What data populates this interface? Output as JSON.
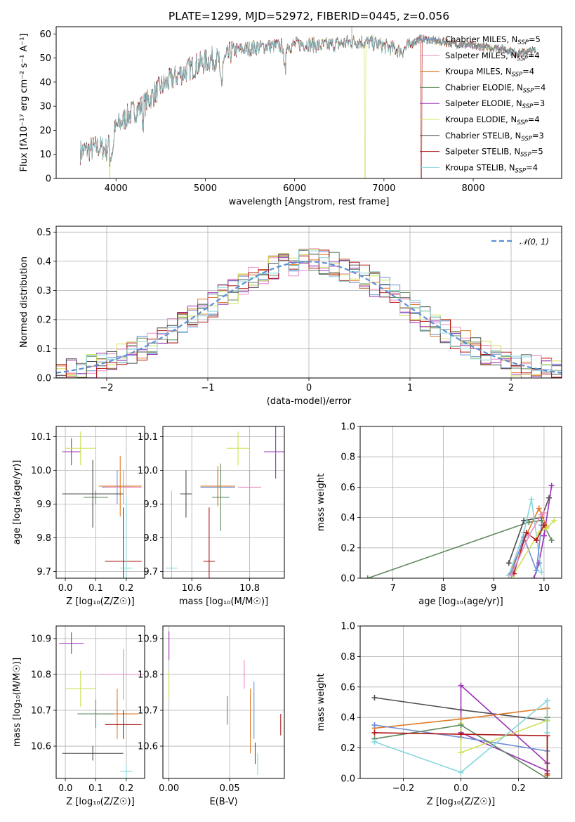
{
  "colors": {
    "Chabrier MILES": "#6b8fd6",
    "Salpeter MILES": "#e88bc2",
    "Kroupa MILES": "#e07c2a",
    "Chabrier ELODIE": "#5f8a5f",
    "Salpeter ELODIE": "#9b30b6",
    "Kroupa ELODIE": "#cfe05a",
    "Chabrier STELIB": "#4d4d4d",
    "Salpeter STELIB": "#b01616",
    "Kroupa STELIB": "#86d6dc",
    "normal": "#5b8fd6"
  },
  "chart_data": [
    {
      "id": "spectrum",
      "type": "line",
      "title": "PLATE=1299, MJD=52972, FIBERID=0445, z=0.056",
      "xlabel": "wavelength [Angstrom, rest frame]",
      "ylabel": "Flux [fλ10⁻¹⁷ erg cm⁻² s⁻¹ A⁻¹]",
      "xlim": [
        3330,
        8990
      ],
      "ylim": [
        0,
        63
      ],
      "xticks": [
        "4000",
        "5000",
        "6000",
        "7000",
        "8000"
      ],
      "yticks": [
        "0",
        "10",
        "20",
        "30",
        "40",
        "50",
        "60"
      ],
      "grid": false,
      "legend_position": "right",
      "series": [
        {
          "name": "Chabrier MILES, N",
          "sub": "SSP",
          "suffix": "=5"
        },
        {
          "name": "Salpeter MILES, N",
          "sub": "SSP",
          "suffix": "=4"
        },
        {
          "name": "Kroupa MILES, N",
          "sub": "SSP",
          "suffix": "=4"
        },
        {
          "name": "Chabrier ELODIE, N",
          "sub": "SSP",
          "suffix": "=4"
        },
        {
          "name": "Salpeter ELODIE, N",
          "sub": "SSP",
          "suffix": "=3"
        },
        {
          "name": "Kroupa ELODIE, N",
          "sub": "SSP",
          "suffix": "=4"
        },
        {
          "name": "Chabrier STELIB, N",
          "sub": "SSP",
          "suffix": "=3"
        },
        {
          "name": "Salpeter STELIB, N",
          "sub": "SSP",
          "suffix": "=5"
        },
        {
          "name": "Kroupa STELIB, N",
          "sub": "SSP",
          "suffix": "=4"
        }
      ],
      "continuum": {
        "x": [
          3600,
          3700,
          3800,
          3900,
          4000,
          4100,
          4200,
          4300,
          4400,
          4500,
          4700,
          4900,
          5100,
          5200,
          5300,
          5500,
          5700,
          5900,
          6100,
          6300,
          6500,
          6700,
          6900,
          7100,
          7200,
          7400,
          7600,
          7800,
          8000,
          8300,
          8500,
          8700
        ],
        "y": [
          11,
          12,
          13,
          12,
          21,
          25,
          28,
          30,
          34,
          38,
          43,
          47,
          50,
          48,
          53,
          54,
          55,
          55,
          56,
          55,
          56,
          57,
          56,
          54,
          53,
          58,
          57,
          56,
          55,
          54,
          52,
          53
        ]
      },
      "dropouts": [
        {
          "x": 3930,
          "series": "Kroupa ELODIE"
        },
        {
          "x": 6790,
          "series": "Kroupa ELODIE"
        },
        {
          "x": 7420,
          "series": "Salpeter STELIB"
        }
      ]
    },
    {
      "id": "residuals",
      "type": "bar",
      "xlabel": "(data-model)/error",
      "ylabel": "Normed distribution",
      "xlim": [
        -2.5,
        2.5
      ],
      "ylim": [
        0,
        0.52
      ],
      "xticks": [
        "−2",
        "−1",
        "0",
        "1",
        "2"
      ],
      "yticks": [
        "0.0",
        "0.1",
        "0.2",
        "0.3",
        "0.4",
        "0.5"
      ],
      "grid": true,
      "legend_position": "upper right",
      "legend": "𝒩(0, 1)",
      "bin_width": 0.1
    },
    {
      "id": "age-vs-Z",
      "type": "scatter",
      "xlabel": "Z [log₁₀(Z/Z☉)]",
      "ylabel": "age  [log₁₀(age/yr)]",
      "xlim": [
        -0.03,
        0.26
      ],
      "ylim": [
        9.68,
        10.13
      ],
      "xticks": [
        "0.0",
        "0.1",
        "0.2"
      ],
      "yticks": [
        "9.7",
        "9.8",
        "9.9",
        "10.0",
        "10.1"
      ],
      "grid": true,
      "points": [
        {
          "series": "Chabrier MILES",
          "x": 0.17,
          "y": 9.95,
          "xerr": 0.05,
          "yerr": 0.05
        },
        {
          "series": "Salpeter MILES",
          "x": 0.19,
          "y": 9.95,
          "xerr": 0.06,
          "yerr": 0.05
        },
        {
          "series": "Kroupa MILES",
          "x": 0.18,
          "y": 9.953,
          "xerr": 0.07,
          "yerr": 0.09
        },
        {
          "series": "Chabrier ELODIE",
          "x": 0.1,
          "y": 9.92,
          "xerr": 0.04,
          "yerr": 0.02
        },
        {
          "series": "Salpeter ELODIE",
          "x": 0.02,
          "y": 10.055,
          "xerr": 0.03,
          "yerr": 0.04
        },
        {
          "series": "Kroupa ELODIE",
          "x": 0.05,
          "y": 10.065,
          "xerr": 0.05,
          "yerr": 0.05
        },
        {
          "series": "Chabrier STELIB",
          "x": 0.09,
          "y": 9.93,
          "xerr": 0.1,
          "yerr": 0.1
        },
        {
          "series": "Salpeter STELIB",
          "x": 0.19,
          "y": 9.73,
          "xerr": 0.06,
          "yerr": 0.16
        },
        {
          "series": "Kroupa STELIB",
          "x": 0.2,
          "y": 9.71,
          "xerr": 0.02,
          "yerr": 0.21
        }
      ]
    },
    {
      "id": "age-vs-mass",
      "type": "scatter",
      "xlabel": "mass [log₁₀(M/M☉)]",
      "ylabel": "",
      "xlim": [
        10.5,
        10.92
      ],
      "ylim": [
        9.68,
        10.13
      ],
      "xticks": [
        "10.6",
        "10.8"
      ],
      "yticks": [
        "9.7",
        "9.8",
        "9.9",
        "10.0",
        "10.1"
      ],
      "grid": true,
      "points": [
        {
          "series": "Chabrier MILES",
          "x": 10.69,
          "y": 9.95,
          "xerr": 0.06,
          "yerr": 0.05
        },
        {
          "series": "Salpeter MILES",
          "x": 10.8,
          "y": 9.95,
          "xerr": 0.04,
          "yerr": 0.05
        },
        {
          "series": "Kroupa MILES",
          "x": 10.69,
          "y": 9.953,
          "xerr": 0.06,
          "yerr": 0.06
        },
        {
          "series": "Chabrier ELODIE",
          "x": 10.7,
          "y": 9.92,
          "xerr": 0.03,
          "yerr": 0.1
        },
        {
          "series": "Salpeter ELODIE",
          "x": 10.89,
          "y": 10.055,
          "xerr": 0.04,
          "yerr": 0.08
        },
        {
          "series": "Kroupa ELODIE",
          "x": 10.76,
          "y": 10.065,
          "xerr": 0.04,
          "yerr": 0.05
        },
        {
          "series": "Chabrier STELIB",
          "x": 10.58,
          "y": 9.93,
          "xerr": 0.02,
          "yerr": 0.07
        },
        {
          "series": "Salpeter STELIB",
          "x": 10.66,
          "y": 9.73,
          "xerr": 0.02,
          "yerr": 0.16
        },
        {
          "series": "Kroupa STELIB",
          "x": 10.53,
          "y": 9.71,
          "xerr": 0.02,
          "yerr": 0.23
        }
      ]
    },
    {
      "id": "massweight-vs-age",
      "type": "line",
      "xlabel": "age  [log₁₀(age/yr)]",
      "ylabel": "mass weight",
      "xlim": [
        6.35,
        10.35
      ],
      "ylim": [
        0,
        1
      ],
      "xticks": [
        "7",
        "8",
        "9",
        "10"
      ],
      "yticks": [
        "0.0",
        "0.2",
        "0.4",
        "0.6",
        "0.8",
        "1.0"
      ],
      "grid": true,
      "series": [
        {
          "series": "Chabrier ELODIE",
          "x": [
            6.5,
            9.7,
            9.95,
            10.15
          ],
          "y": [
            0.0,
            0.37,
            0.38,
            0.25
          ]
        },
        {
          "series": "Chabrier STELIB",
          "x": [
            9.3,
            9.6,
            9.95,
            10.1
          ],
          "y": [
            0.1,
            0.38,
            0.4,
            0.53
          ]
        },
        {
          "series": "Salpeter ELODIE",
          "x": [
            9.8,
            9.9,
            10.0,
            10.15
          ],
          "y": [
            0.0,
            0.1,
            0.28,
            0.61
          ]
        },
        {
          "series": "Kroupa MILES",
          "x": [
            9.3,
            9.6,
            9.9,
            10.05
          ],
          "y": [
            0.02,
            0.25,
            0.46,
            0.34
          ]
        },
        {
          "series": "Kroupa STELIB",
          "x": [
            9.3,
            9.6,
            9.75,
            9.95
          ],
          "y": [
            0.02,
            0.3,
            0.52,
            0.04
          ]
        },
        {
          "series": "Chabrier MILES",
          "x": [
            9.35,
            9.6,
            9.85,
            9.95
          ],
          "y": [
            0.03,
            0.27,
            0.05,
            0.35
          ]
        },
        {
          "series": "Kroupa ELODIE",
          "x": [
            9.35,
            9.9,
            10.05,
            10.2
          ],
          "y": [
            0.0,
            0.3,
            0.33,
            0.38
          ]
        },
        {
          "series": "Salpeter STELIB",
          "x": [
            9.4,
            9.65,
            9.85,
            10.0
          ],
          "y": [
            0.03,
            0.3,
            0.25,
            0.35
          ]
        },
        {
          "series": "Salpeter MILES",
          "x": [
            9.35,
            9.7,
            9.95,
            10.0
          ],
          "y": [
            0.02,
            0.28,
            0.42,
            0.43
          ]
        }
      ]
    },
    {
      "id": "mass-vs-Z",
      "type": "scatter",
      "xlabel": "Z [log₁₀(Z/Z☉)]",
      "ylabel": "mass [log₁₀(M/M☉)]",
      "xlim": [
        -0.03,
        0.26
      ],
      "ylim": [
        10.51,
        10.935
      ],
      "xticks": [
        "0.0",
        "0.1",
        "0.2"
      ],
      "yticks": [
        "10.6",
        "10.7",
        "10.8",
        "10.9"
      ],
      "grid": true,
      "points": [
        {
          "series": "Chabrier MILES",
          "x": 0.17,
          "y": 10.69,
          "xerr": 0.05,
          "yerr": 0.04
        },
        {
          "series": "Salpeter MILES",
          "x": 0.19,
          "y": 10.8,
          "xerr": 0.08,
          "yerr": 0.07
        },
        {
          "series": "Kroupa MILES",
          "x": 0.17,
          "y": 10.69,
          "xerr": 0.07,
          "yerr": 0.07
        },
        {
          "series": "Chabrier ELODIE",
          "x": 0.1,
          "y": 10.69,
          "xerr": 0.06,
          "yerr": 0.04
        },
        {
          "series": "Salpeter ELODIE",
          "x": 0.02,
          "y": 10.887,
          "xerr": 0.04,
          "yerr": 0.03
        },
        {
          "series": "Kroupa ELODIE",
          "x": 0.05,
          "y": 10.76,
          "xerr": 0.05,
          "yerr": 0.05
        },
        {
          "series": "Chabrier STELIB",
          "x": 0.09,
          "y": 10.58,
          "xerr": 0.1,
          "yerr": 0.02
        },
        {
          "series": "Salpeter STELIB",
          "x": 0.19,
          "y": 10.66,
          "xerr": 0.06,
          "yerr": 0.04
        },
        {
          "series": "Kroupa STELIB",
          "x": 0.2,
          "y": 10.53,
          "xerr": 0.02,
          "yerr": 0.02
        }
      ]
    },
    {
      "id": "mass-vs-ebv",
      "type": "scatter",
      "xlabel": "E(B-V)",
      "ylabel": "",
      "xlim": [
        -0.005,
        0.095
      ],
      "ylim": [
        10.51,
        10.935
      ],
      "xticks": [
        "0.00",
        "0.05"
      ],
      "yticks": [
        "10.6",
        "10.7",
        "10.8",
        "10.9"
      ],
      "grid": true,
      "points": [
        {
          "series": "Chabrier MILES",
          "x": 0.07,
          "y": 10.7,
          "yerr": 0.08
        },
        {
          "series": "Salpeter MILES",
          "x": 0.062,
          "y": 10.8,
          "yerr": 0.04
        },
        {
          "series": "Kroupa MILES",
          "x": 0.067,
          "y": 10.67,
          "yerr": 0.09
        },
        {
          "series": "Chabrier ELODIE",
          "x": 0.048,
          "y": 10.7,
          "yerr": 0.04
        },
        {
          "series": "Salpeter ELODIE",
          "x": 0.0,
          "y": 10.88,
          "yerr": 0.04
        },
        {
          "series": "Kroupa ELODIE",
          "x": 0.0,
          "y": 10.77,
          "yerr": 0.04
        },
        {
          "series": "Chabrier STELIB",
          "x": 0.071,
          "y": 10.58,
          "yerr": 0.03
        },
        {
          "series": "Salpeter STELIB",
          "x": 0.092,
          "y": 10.66,
          "yerr": 0.03
        },
        {
          "series": "Kroupa STELIB",
          "x": 0.073,
          "y": 10.55,
          "yerr": 0.03
        }
      ]
    },
    {
      "id": "massweight-vs-Z",
      "type": "line",
      "xlabel": "Z [log₁₀(Z/Z☉)]",
      "ylabel": "mass weight",
      "xlim": [
        -0.35,
        0.35
      ],
      "ylim": [
        0,
        1
      ],
      "xticks": [
        "−0.2",
        "0.0",
        "0.2"
      ],
      "yticks": [
        "0.0",
        "0.2",
        "0.4",
        "0.6",
        "0.8",
        "1.0"
      ],
      "grid": true,
      "series": [
        {
          "series": "Chabrier STELIB",
          "x": [
            -0.3,
            0.0,
            0.3,
            0.3
          ],
          "y": [
            0.53,
            0.45,
            0.38,
            0.1
          ]
        },
        {
          "series": "Salpeter ELODIE",
          "x": [
            0.3,
            0.0,
            0.0,
            0.3
          ],
          "y": [
            0.1,
            0.61,
            0.3,
            0.05
          ]
        },
        {
          "series": "Kroupa MILES",
          "x": [
            -0.3,
            0.0,
            0.3,
            0.3
          ],
          "y": [
            0.33,
            0.39,
            0.46,
            0.02
          ]
        },
        {
          "series": "Chabrier MILES",
          "x": [
            -0.3,
            0.0,
            0.3,
            0.3
          ],
          "y": [
            0.35,
            0.27,
            0.18,
            0.03
          ]
        },
        {
          "series": "Kroupa ELODIE",
          "x": [
            0.0,
            0.0,
            0.3,
            0.3
          ],
          "y": [
            0.36,
            0.17,
            0.38,
            0.0
          ]
        },
        {
          "series": "Chabrier ELODIE",
          "x": [
            -0.3,
            0.0,
            0.3,
            0.3
          ],
          "y": [
            0.26,
            0.35,
            0.0,
            0.4
          ]
        },
        {
          "series": "Salpeter STELIB",
          "x": [
            -0.3,
            0.0,
            0.3,
            0.3
          ],
          "y": [
            0.3,
            0.29,
            0.28,
            0.03
          ]
        },
        {
          "series": "Kroupa STELIB",
          "x": [
            -0.3,
            0.0,
            0.3,
            0.3
          ],
          "y": [
            0.24,
            0.04,
            0.51,
            0.3
          ]
        }
      ]
    }
  ]
}
